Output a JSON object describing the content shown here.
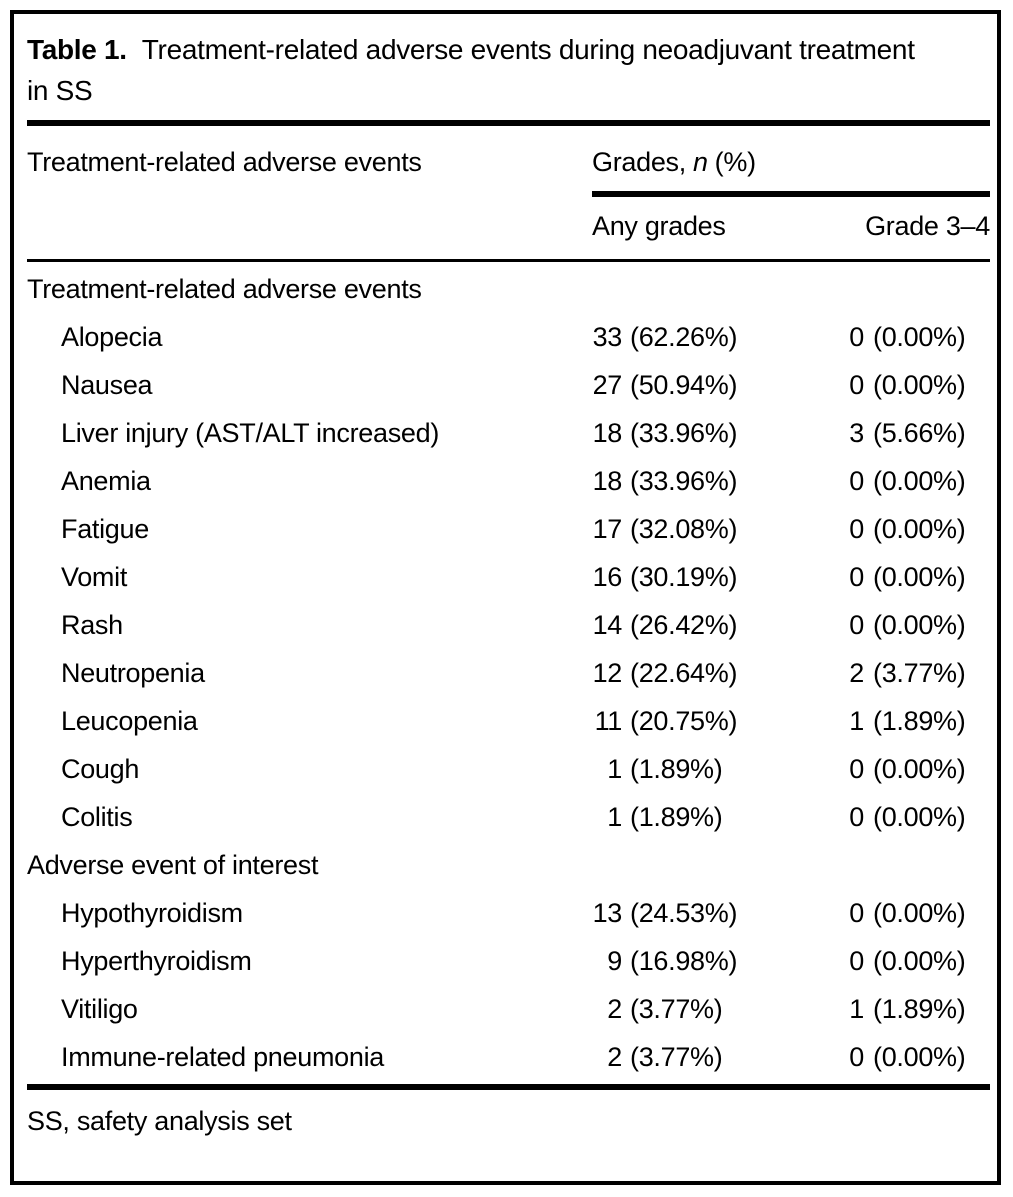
{
  "colors": {
    "text": "#000000",
    "background": "#ffffff",
    "rule": "#000000"
  },
  "table": {
    "caption": {
      "label": "Table 1.",
      "text": "Treatment-related adverse events during neoadjuvant treatment in SS"
    },
    "header": {
      "col1": "Treatment-related adverse events",
      "grades_prefix": "Grades,",
      "grades_n": "n",
      "grades_unit": "(%)",
      "sub_any": "Any grades",
      "sub_g34": "Grade 3–4"
    },
    "rows": [
      {
        "type": "section",
        "label": "Treatment-related adverse events",
        "any_n": "",
        "any_pct": "",
        "g34_n": "",
        "g34_pct": ""
      },
      {
        "type": "item",
        "label": "Alopecia",
        "any_n": "33",
        "any_pct": "(62.26%)",
        "g34_n": "0",
        "g34_pct": "(0.00%)"
      },
      {
        "type": "item",
        "label": "Nausea",
        "any_n": "27",
        "any_pct": "(50.94%)",
        "g34_n": "0",
        "g34_pct": "(0.00%)"
      },
      {
        "type": "item",
        "label": "Liver injury (AST/ALT increased)",
        "any_n": "18",
        "any_pct": "(33.96%)",
        "g34_n": "3",
        "g34_pct": "(5.66%)"
      },
      {
        "type": "item",
        "label": "Anemia",
        "any_n": "18",
        "any_pct": "(33.96%)",
        "g34_n": "0",
        "g34_pct": "(0.00%)"
      },
      {
        "type": "item",
        "label": "Fatigue",
        "any_n": "17",
        "any_pct": "(32.08%)",
        "g34_n": "0",
        "g34_pct": "(0.00%)"
      },
      {
        "type": "item",
        "label": "Vomit",
        "any_n": "16",
        "any_pct": "(30.19%)",
        "g34_n": "0",
        "g34_pct": "(0.00%)"
      },
      {
        "type": "item",
        "label": "Rash",
        "any_n": "14",
        "any_pct": "(26.42%)",
        "g34_n": "0",
        "g34_pct": "(0.00%)"
      },
      {
        "type": "item",
        "label": "Neutropenia",
        "any_n": "12",
        "any_pct": "(22.64%)",
        "g34_n": "2",
        "g34_pct": "(3.77%)"
      },
      {
        "type": "item",
        "label": "Leucopenia",
        "any_n": "11",
        "any_pct": "(20.75%)",
        "g34_n": "1",
        "g34_pct": "(1.89%)"
      },
      {
        "type": "item",
        "label": "Cough",
        "any_n": "1",
        "any_pct": "(1.89%)",
        "g34_n": "0",
        "g34_pct": "(0.00%)"
      },
      {
        "type": "item",
        "label": "Colitis",
        "any_n": "1",
        "any_pct": "(1.89%)",
        "g34_n": "0",
        "g34_pct": "(0.00%)"
      },
      {
        "type": "section",
        "label": "Adverse event of interest",
        "any_n": "",
        "any_pct": "",
        "g34_n": "",
        "g34_pct": ""
      },
      {
        "type": "item",
        "label": "Hypothyroidism",
        "any_n": "13",
        "any_pct": "(24.53%)",
        "g34_n": "0",
        "g34_pct": "(0.00%)"
      },
      {
        "type": "item",
        "label": "Hyperthyroidism",
        "any_n": "9",
        "any_pct": "(16.98%)",
        "g34_n": "0",
        "g34_pct": "(0.00%)"
      },
      {
        "type": "item",
        "label": "Vitiligo",
        "any_n": "2",
        "any_pct": "(3.77%)",
        "g34_n": "1",
        "g34_pct": "(1.89%)"
      },
      {
        "type": "item",
        "label": "Immune-related pneumonia",
        "any_n": "2",
        "any_pct": "(3.77%)",
        "g34_n": "0",
        "g34_pct": "(0.00%)"
      }
    ],
    "footnote": "SS, safety analysis set"
  }
}
